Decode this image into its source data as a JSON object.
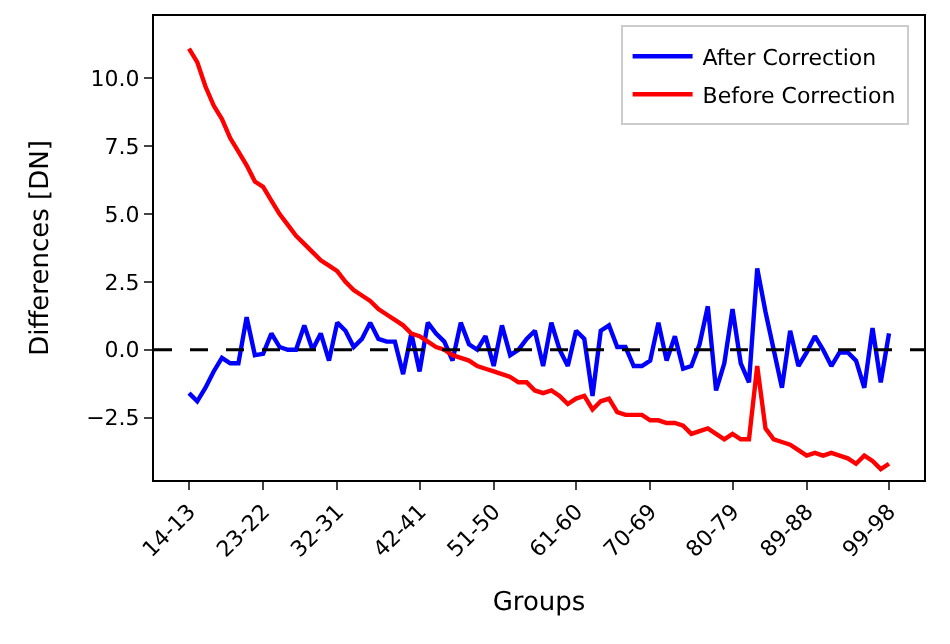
{
  "chart_data": {
    "type": "line",
    "xlabel": "Groups",
    "ylabel": "Differences [DN]",
    "categories": [
      "14-13",
      null,
      null,
      null,
      null,
      null,
      null,
      null,
      null,
      "23-22",
      null,
      null,
      null,
      null,
      null,
      null,
      null,
      null,
      "32-31",
      null,
      null,
      null,
      null,
      null,
      null,
      null,
      null,
      null,
      "42-41",
      null,
      null,
      null,
      null,
      null,
      null,
      null,
      null,
      "51-50",
      null,
      null,
      null,
      null,
      null,
      null,
      null,
      null,
      null,
      "61-60",
      null,
      null,
      null,
      null,
      null,
      null,
      null,
      null,
      "70-69",
      null,
      null,
      null,
      null,
      null,
      null,
      null,
      null,
      null,
      "80-79",
      null,
      null,
      null,
      null,
      null,
      null,
      null,
      null,
      "89-88",
      null,
      null,
      null,
      null,
      null,
      null,
      null,
      null,
      null,
      "99-98"
    ],
    "series": [
      {
        "name": "After Correction",
        "color": "#0000ff",
        "values": [
          -1.6,
          -1.9,
          -1.4,
          -0.8,
          -0.3,
          -0.5,
          -0.5,
          1.2,
          -0.2,
          -0.15,
          0.6,
          0.1,
          0.0,
          0.0,
          0.9,
          0.0,
          0.6,
          -0.4,
          1.0,
          0.7,
          0.1,
          0.4,
          1.0,
          0.4,
          0.3,
          0.3,
          -0.9,
          0.6,
          -0.8,
          1.0,
          0.6,
          0.3,
          -0.4,
          1.0,
          0.2,
          0.0,
          0.5,
          -0.6,
          0.9,
          -0.2,
          0.0,
          0.4,
          0.7,
          -0.6,
          1.0,
          0.0,
          -0.6,
          0.7,
          0.4,
          -1.7,
          0.7,
          0.9,
          0.1,
          0.1,
          -0.6,
          -0.6,
          -0.4,
          1.0,
          -0.4,
          0.5,
          -0.7,
          -0.6,
          0.2,
          1.6,
          -1.5,
          -0.5,
          1.5,
          -0.5,
          -1.2,
          3.0,
          1.4,
          0.0,
          -1.4,
          0.7,
          -0.6,
          -0.1,
          0.5,
          0.0,
          -0.6,
          -0.1,
          -0.1,
          -0.4,
          -1.4,
          0.8,
          -1.2,
          0.6
        ]
      },
      {
        "name": "Before Correction",
        "color": "#ff0000",
        "values": [
          11.1,
          10.6,
          9.7,
          9.0,
          8.5,
          7.8,
          7.3,
          6.8,
          6.2,
          6.0,
          5.5,
          5.0,
          4.6,
          4.2,
          3.9,
          3.6,
          3.3,
          3.1,
          2.9,
          2.5,
          2.2,
          2.0,
          1.8,
          1.5,
          1.3,
          1.1,
          0.9,
          0.6,
          0.5,
          0.3,
          0.1,
          0.0,
          -0.2,
          -0.3,
          -0.4,
          -0.6,
          -0.7,
          -0.8,
          -0.9,
          -1.0,
          -1.2,
          -1.2,
          -1.5,
          -1.6,
          -1.5,
          -1.7,
          -2.0,
          -1.8,
          -1.7,
          -2.2,
          -1.9,
          -1.8,
          -2.3,
          -2.4,
          -2.4,
          -2.4,
          -2.6,
          -2.6,
          -2.7,
          -2.7,
          -2.8,
          -3.1,
          -3.0,
          -2.9,
          -3.1,
          -3.3,
          -3.1,
          -3.3,
          -3.3,
          -0.6,
          -2.9,
          -3.3,
          -3.4,
          -3.5,
          -3.7,
          -3.9,
          -3.8,
          -3.9,
          -3.8,
          -3.9,
          -4.0,
          -4.2,
          -3.9,
          -4.1,
          -4.4,
          -4.2
        ]
      }
    ],
    "ylim": [
      -4.8,
      12.3
    ],
    "yticks": [
      {
        "value": -2.5,
        "label": "−2.5"
      },
      {
        "value": 0,
        "label": "0.0"
      },
      {
        "value": 2.5,
        "label": "2.5"
      },
      {
        "value": 5,
        "label": "5.0"
      },
      {
        "value": 7.5,
        "label": "7.5"
      },
      {
        "value": 10,
        "label": "10.0"
      }
    ],
    "ref_lines": [
      {
        "axis": "y",
        "value": 0,
        "color": "#000000",
        "line_style": "dashed"
      }
    ],
    "legend": "top right",
    "marker": "none",
    "line_style": "solid"
  }
}
